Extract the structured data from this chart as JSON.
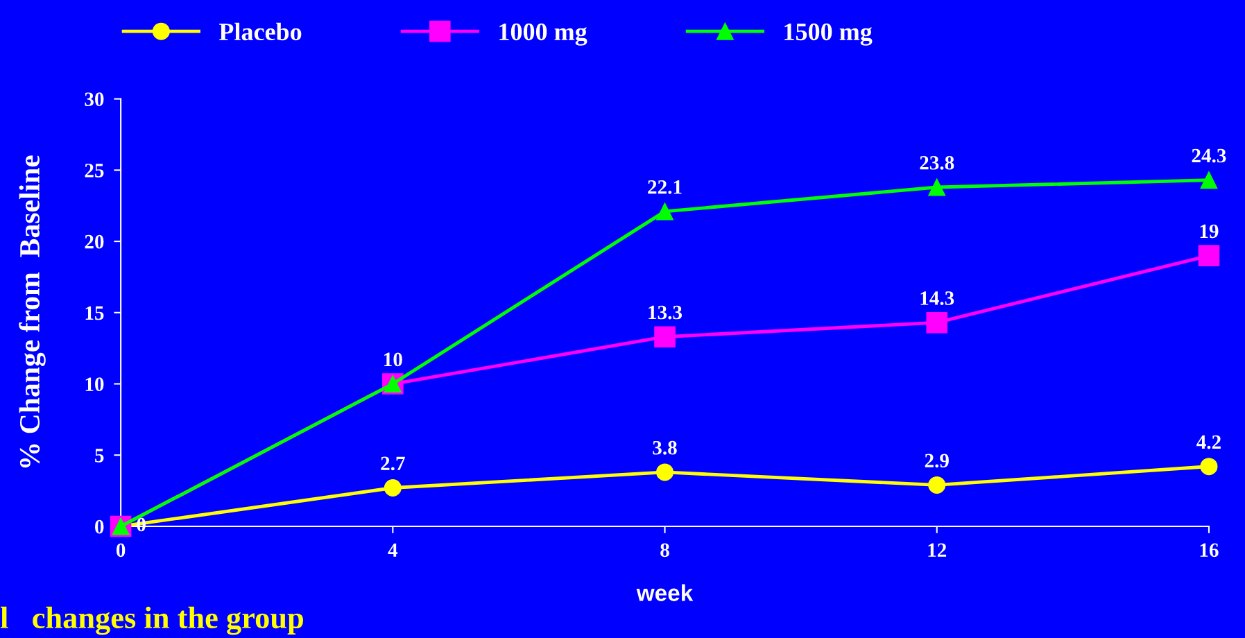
{
  "chart_data": {
    "type": "line",
    "xlabel": "week",
    "ylabel": "% Change from  Baseline",
    "x": [
      0,
      4,
      8,
      12,
      16
    ],
    "xlim": [
      0,
      16
    ],
    "xticks": [
      0,
      4,
      8,
      12,
      16
    ],
    "ylim": [
      0,
      30
    ],
    "yticks": [
      0,
      5,
      10,
      15,
      20,
      25,
      30
    ],
    "grid": false,
    "legend": "top",
    "series": [
      {
        "name": "Placebo",
        "color": "#ffff00",
        "marker": "circle",
        "values": [
          0,
          2.7,
          3.8,
          2.9,
          4.2
        ],
        "value_labels": [
          "0",
          "2.7",
          "3.8",
          "2.9",
          "4.2"
        ]
      },
      {
        "name": "1000 mg",
        "color": "#ff00ff",
        "marker": "square",
        "values": [
          0,
          10,
          13.3,
          14.3,
          19
        ],
        "value_labels": [
          null,
          null,
          "13.3",
          "14.3",
          "19"
        ]
      },
      {
        "name": "1500 mg",
        "color": "#00ff00",
        "marker": "triangle",
        "values": [
          0,
          10,
          22.1,
          23.8,
          24.3
        ],
        "value_labels": [
          null,
          "10",
          "22.1",
          "23.8",
          "24.3"
        ]
      }
    ],
    "annotations": [
      "l   changes in the group"
    ]
  }
}
